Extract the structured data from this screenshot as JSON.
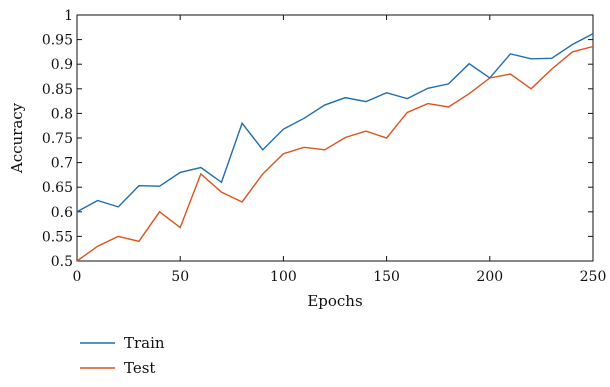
{
  "chart_data": {
    "type": "line",
    "xlabel": "Epochs",
    "ylabel": "Accuracy",
    "xlim": [
      0,
      250
    ],
    "ylim": [
      0.5,
      1
    ],
    "x_ticks": [
      0,
      50,
      100,
      150,
      200,
      250
    ],
    "y_ticks": [
      0.5,
      0.55,
      0.6,
      0.65,
      0.7,
      0.75,
      0.8,
      0.85,
      0.9,
      0.95,
      1
    ],
    "x_tick_labels": [
      "0",
      "50",
      "100",
      "150",
      "200",
      "250"
    ],
    "y_tick_labels": [
      "0.5",
      "0.55",
      "0.6",
      "0.65",
      "0.7",
      "0.75",
      "0.8",
      "0.85",
      "0.9",
      "0.95",
      "1"
    ],
    "grid": false,
    "legend_position": "bottom-left",
    "x": [
      0,
      10,
      20,
      30,
      40,
      50,
      60,
      70,
      80,
      90,
      100,
      110,
      120,
      130,
      140,
      150,
      160,
      170,
      180,
      190,
      200,
      210,
      220,
      230,
      240,
      250
    ],
    "series": [
      {
        "name": "Train",
        "color": "#1f6fad",
        "values": [
          0.6,
          0.623,
          0.61,
          0.653,
          0.652,
          0.68,
          0.69,
          0.66,
          0.78,
          0.726,
          0.768,
          0.79,
          0.817,
          0.832,
          0.824,
          0.842,
          0.83,
          0.851,
          0.86,
          0.901,
          0.872,
          0.921,
          0.911,
          0.912,
          0.94,
          0.962
        ]
      },
      {
        "name": "Test",
        "color": "#d9541e",
        "values": [
          0.5,
          0.53,
          0.55,
          0.54,
          0.6,
          0.568,
          0.677,
          0.64,
          0.62,
          0.677,
          0.718,
          0.731,
          0.726,
          0.751,
          0.764,
          0.75,
          0.802,
          0.82,
          0.813,
          0.84,
          0.872,
          0.88,
          0.85,
          0.89,
          0.925,
          0.936
        ]
      }
    ]
  }
}
